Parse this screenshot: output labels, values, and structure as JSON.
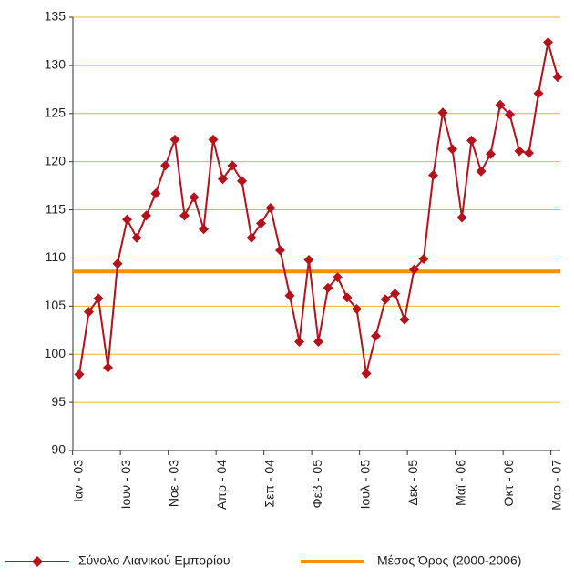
{
  "chart_data": {
    "type": "line",
    "categories": [
      "Ιαν - 03",
      null,
      null,
      null,
      null,
      "Ιουν - 03",
      null,
      null,
      null,
      null,
      "Νοε - 03",
      null,
      null,
      null,
      null,
      "Απρ - 04",
      null,
      null,
      null,
      null,
      "Σεπ - 04",
      null,
      null,
      null,
      null,
      "Φεβ - 05",
      null,
      null,
      null,
      null,
      "Ιουλ - 05",
      null,
      null,
      null,
      null,
      "Δεκ - 05",
      null,
      null,
      null,
      null,
      "Μαϊ - 06",
      null,
      null,
      null,
      null,
      "Οκτ - 06",
      null,
      null,
      null,
      null,
      "Μαρ - 07"
    ],
    "series": [
      {
        "name": "Σύνολο Λιανικού Εμπορίου",
        "color": "#b5121b",
        "values": [
          97.9,
          104.4,
          105.8,
          98.6,
          109.4,
          114.0,
          112.1,
          114.4,
          116.7,
          119.6,
          122.3,
          114.4,
          116.3,
          113.0,
          122.3,
          118.2,
          119.6,
          118.0,
          112.1,
          113.6,
          115.2,
          110.8,
          106.1,
          101.3,
          109.8,
          101.3,
          106.9,
          108.0,
          105.9,
          104.7,
          98.0,
          101.9,
          105.7,
          106.3,
          103.6,
          108.8,
          109.9,
          118.6,
          125.1,
          121.3,
          114.2,
          122.2,
          119.0,
          120.8,
          125.9,
          124.9,
          121.1,
          120.9,
          127.1,
          132.4,
          128.8
        ]
      }
    ],
    "reference_line": {
      "name": "Μέσος Όρος (2000-2006)",
      "color": "#f39200",
      "value": 108.6
    },
    "ylim": [
      90,
      135
    ],
    "yticks": [
      90,
      95,
      100,
      105,
      110,
      115,
      120,
      125,
      130,
      135
    ],
    "grid": true,
    "grid_color": "#f0b030"
  }
}
